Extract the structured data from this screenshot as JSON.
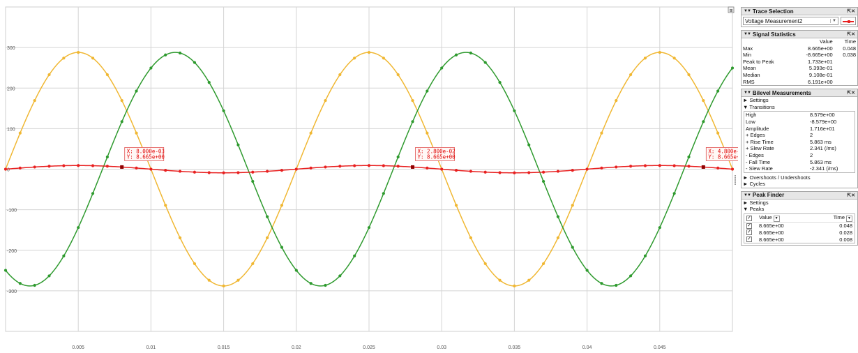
{
  "chart_data": {
    "type": "line",
    "xlim": [
      0,
      0.05
    ],
    "ylim": [
      -400,
      400
    ],
    "x_ticks": [
      "0.005",
      "0.01",
      "0.015",
      "0.02",
      "0.025",
      "0.03",
      "0.035",
      "0.04",
      "0.045"
    ],
    "y_ticks": [
      "300",
      "200",
      "100",
      "0",
      "-100",
      "-200",
      "-300"
    ],
    "grid": true,
    "series": [
      {
        "color": "#f0b732",
        "frequency_hz": 50,
        "amplitude": 288,
        "phase_deg": 0
      },
      {
        "color": "#2e9a2e",
        "frequency_hz": 50,
        "amplitude": 288,
        "phase_deg": -120
      },
      {
        "color": "#e82020",
        "frequency_hz": 50,
        "amplitude": 8.665,
        "phase_deg": 0
      }
    ],
    "markers": [
      {
        "x_text": "X:  8.000e-03",
        "y_text": "Y:  8.665e+00",
        "x": 0.008,
        "y": 8.665
      },
      {
        "x_text": "X:  2.800e-02",
        "y_text": "Y:  8.665e+00",
        "x": 0.028,
        "y": 8.665
      },
      {
        "x_text": "X:  4.800e-02",
        "y_text": "Y:  8.665e+00",
        "x": 0.048,
        "y": 8.665
      }
    ]
  },
  "trace_selection": {
    "title": "Trace Selection",
    "selected": "Voltage Measurement2"
  },
  "signal_statistics": {
    "title": "Signal Statistics",
    "col_value": "Value",
    "col_time": "Time",
    "rows": [
      {
        "label": "Max",
        "value": "8.665e+00",
        "time": "0.048"
      },
      {
        "label": "Min",
        "value": "-8.665e+00",
        "time": "0.038"
      },
      {
        "label": "Peak to Peak",
        "value": "1.733e+01",
        "time": ""
      },
      {
        "label": "Mean",
        "value": "5.393e-01",
        "time": ""
      },
      {
        "label": "Median",
        "value": "9.108e-01",
        "time": ""
      },
      {
        "label": "RMS",
        "value": "6.191e+00",
        "time": ""
      }
    ]
  },
  "bilevel": {
    "title": "Bilevel Measurements",
    "settings": "► Settings",
    "transitions": "▼ Transitions",
    "rows": [
      {
        "label": "High",
        "value": "8.579e+00"
      },
      {
        "label": "Low",
        "value": "-8.579e+00"
      },
      {
        "label": "Amplitude",
        "value": "1.716e+01"
      },
      {
        "label": "+ Edges",
        "value": "2"
      },
      {
        "label": "+ Rise Time",
        "value": "5.863 ms"
      },
      {
        "label": "+ Slew Rate",
        "value": "2.341 (/ms)"
      },
      {
        "label": "- Edges",
        "value": "2"
      },
      {
        "label": "- Fall Time",
        "value": "5.863 ms"
      },
      {
        "label": "- Slew Rate",
        "value": "-2.341 (/ms)"
      }
    ],
    "overshoots": "► Overshoots / Undershoots",
    "cycles": "► Cycles"
  },
  "peak_finder": {
    "title": "Peak Finder",
    "settings": "► Settings",
    "peaks": "▼ Peaks",
    "col_value": "Value",
    "col_time": "Time",
    "rows": [
      {
        "value": "8.665e+00",
        "time": "0.048"
      },
      {
        "value": "8.665e+00",
        "time": "0.028"
      },
      {
        "value": "8.665e+00",
        "time": "0.008"
      }
    ]
  }
}
